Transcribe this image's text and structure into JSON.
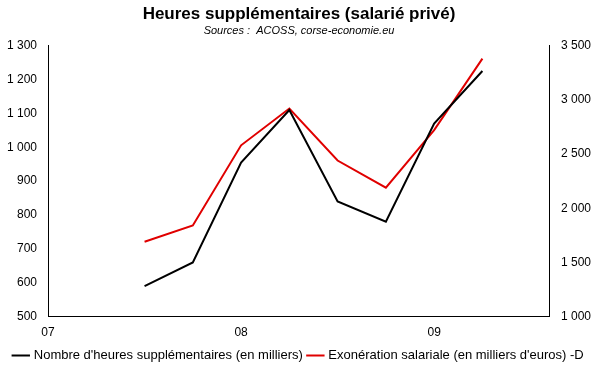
{
  "chart_data": {
    "type": "line",
    "title": "Heures supplémentaires (salarié privé)",
    "subtitle": "Sources :  ACOSS, corse-economie.eu",
    "x": [
      2007.5,
      2007.75,
      2008.0,
      2008.25,
      2008.5,
      2008.75,
      2009.0,
      2009.25
    ],
    "xlim": [
      2007,
      2009.6
    ],
    "xticks": [
      {
        "value": 2007,
        "label": "07"
      },
      {
        "value": 2008,
        "label": "08"
      },
      {
        "value": 2009,
        "label": "09"
      }
    ],
    "series": [
      {
        "name": "Nombre d'heures supplémentaires (en milliers)",
        "color": "#000000",
        "values": [
          590,
          660,
          955,
          1110,
          840,
          780,
          1070,
          1225
        ]
      },
      {
        "name": "Exonération salariale (en milliers d'euros) -D",
        "color": "#e00000",
        "axis": "y2",
        "values": [
          1690,
          1840,
          2580,
          2920,
          2440,
          2190,
          2720,
          3380
        ]
      }
    ],
    "ylim": [
      500,
      1300
    ],
    "yticks": [
      500,
      600,
      700,
      800,
      900,
      {
        "value": 1000,
        "label": "1 000"
      },
      {
        "value": 1100,
        "label": "1 100"
      },
      {
        "value": 1200,
        "label": "1 200"
      },
      {
        "value": 1300,
        "label": "1 300"
      }
    ],
    "y2lim": [
      1000,
      3500
    ],
    "y2ticks": [
      {
        "value": 1000,
        "label": "1 000"
      },
      {
        "value": 1500,
        "label": "1 500"
      },
      {
        "value": 2000,
        "label": "2 000"
      },
      {
        "value": 2500,
        "label": "2 500"
      },
      {
        "value": 3000,
        "label": "3 000"
      },
      {
        "value": 3500,
        "label": "3 500"
      }
    ],
    "grid": false,
    "legend": "bottom"
  }
}
